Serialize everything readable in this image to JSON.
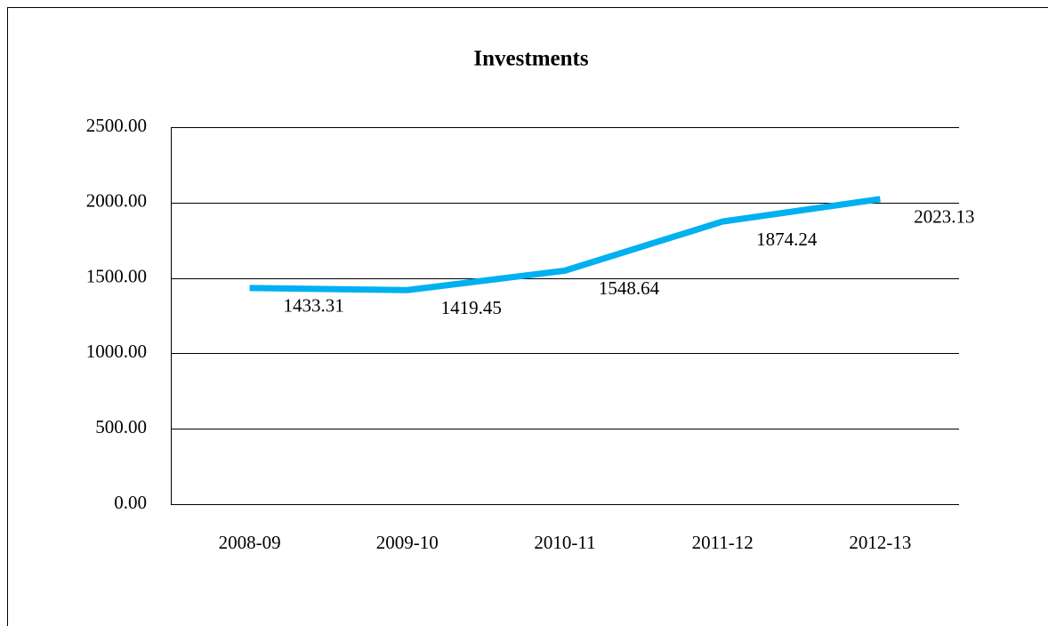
{
  "chart_data": {
    "type": "line",
    "title": "Investments",
    "categories": [
      "2008-09",
      "2009-10",
      "2010-11",
      "2011-12",
      "2012-13"
    ],
    "series": [
      {
        "name": "Investments",
        "color": "#00b0f0",
        "values": [
          1433.31,
          1419.45,
          1548.64,
          1874.24,
          2023.13
        ]
      }
    ],
    "ylim": [
      0,
      2500
    ],
    "yticks": [
      {
        "value": 0,
        "label": "0.00"
      },
      {
        "value": 500,
        "label": "500.00"
      },
      {
        "value": 1000,
        "label": "1000.00"
      },
      {
        "value": 1500,
        "label": "1500.00"
      },
      {
        "value": 2000,
        "label": "2000.00"
      },
      {
        "value": 2500,
        "label": "2500.00"
      }
    ],
    "grid": true
  }
}
